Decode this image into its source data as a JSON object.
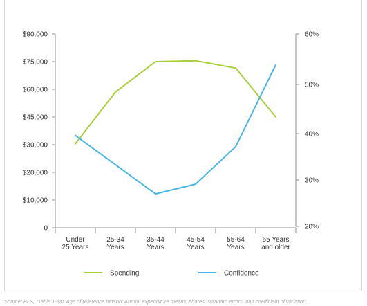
{
  "chart_data": {
    "type": "line",
    "categories": [
      "Under 25 Years",
      "25-34 Years",
      "35-44 Years",
      "45-54 Years",
      "55-64 Years",
      "65 Years and older"
    ],
    "category_labels": [
      [
        "Under",
        "25 Years"
      ],
      [
        "25-34",
        "Years"
      ],
      [
        "35-44",
        "Years"
      ],
      [
        "45-54",
        "Years"
      ],
      [
        "55-64",
        "Years"
      ],
      [
        "65 Years",
        "and older"
      ]
    ],
    "x": [
      0.5,
      1.5,
      2.5,
      3.5,
      4.5,
      5.5
    ],
    "y_left": {
      "ticks": [
        0,
        10000,
        20000,
        30000,
        45000,
        60000,
        75000,
        90000
      ],
      "tick_labels": [
        "0",
        "$10,000",
        "$20,000",
        "$30,000",
        "$45,000",
        "$60,000",
        "$75,000",
        "$90,000"
      ]
    },
    "y_right": {
      "ticks": [
        20,
        30,
        40,
        50,
        60
      ],
      "tick_labels": [
        "20%",
        "30%",
        "40%",
        "50%",
        "60%"
      ]
    },
    "series": [
      {
        "name": "Spending",
        "axis": "left",
        "color": "#a6ce39",
        "x": [
          0.5,
          1.5,
          2.5,
          3.5,
          4.5,
          5.5
        ],
        "values": [
          30500,
          58500,
          75000,
          75500,
          71500,
          45000
        ]
      },
      {
        "name": "Confidence",
        "axis": "right",
        "color": "#47b5e6",
        "x": [
          0.5,
          2.5,
          3.5,
          4.5,
          5.5
        ],
        "values": [
          39.6,
          27.0,
          29.1,
          37.2,
          53.9
        ]
      }
    ],
    "legend": {
      "placement": "bottom",
      "items": [
        {
          "name": "Spending",
          "color": "#a6ce39"
        },
        {
          "name": "Confidence",
          "color": "#47b5e6"
        }
      ]
    },
    "grid": false,
    "colors": {
      "axis": "#8c8c8c",
      "text": "#333333"
    }
  },
  "source": "Source: BLS, \"Table 1300. Age of reference person: Annual expenditure means, shares, standard errors, and coefficient of variation,"
}
